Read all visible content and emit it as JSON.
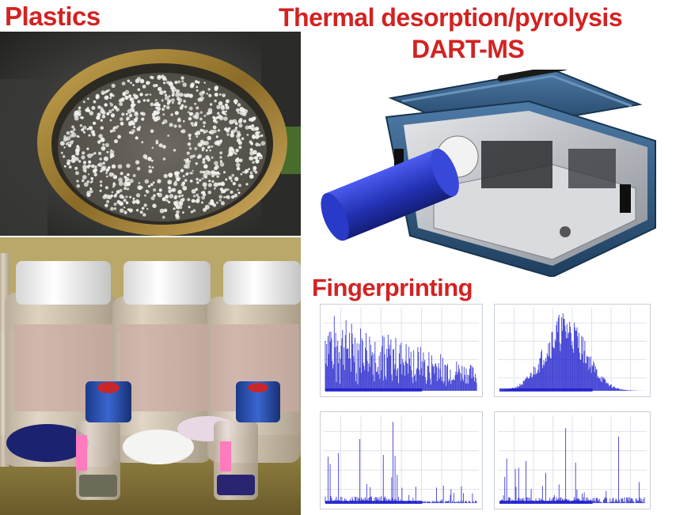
{
  "labels": {
    "plastics": "Plastics",
    "thermal": "Thermal desorption/pyrolysis",
    "dart": "DART-MS",
    "fingerprinting": "Fingerprinting"
  },
  "colors": {
    "label_red": "#d32222",
    "instrument_blue": "#2d557a",
    "cylinder_blue": "#2433b8",
    "spectrum_blue": "#1a1acc"
  },
  "spectra": [
    {
      "pattern": "dense-decay",
      "seed": 7
    },
    {
      "pattern": "bell",
      "seed": 21
    },
    {
      "pattern": "sparse-early",
      "seed": 35
    },
    {
      "pattern": "sparse-spread",
      "seed": 53
    }
  ]
}
